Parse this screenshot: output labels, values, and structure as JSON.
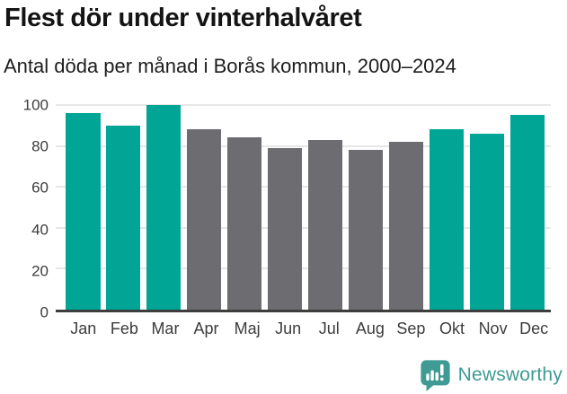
{
  "header": {
    "title": "Flest dör under vinterhalvåret",
    "subtitle": "Antal döda per månad i Borås kommun, 2000–2024"
  },
  "chart_data": {
    "type": "bar",
    "title": "Flest dör under vinterhalvåret",
    "subtitle": "Antal döda per månad i Borås kommun, 2000–2024",
    "categories": [
      "Jan",
      "Feb",
      "Mar",
      "Apr",
      "Maj",
      "Jun",
      "Jul",
      "Aug",
      "Sep",
      "Okt",
      "Nov",
      "Dec"
    ],
    "values": [
      96,
      90,
      100,
      88,
      84,
      79,
      83,
      78,
      82,
      88,
      86,
      95
    ],
    "bar_colors": [
      "teal",
      "teal",
      "teal",
      "gray",
      "gray",
      "gray",
      "gray",
      "gray",
      "gray",
      "teal",
      "teal",
      "teal"
    ],
    "palette": {
      "teal": "#00a596",
      "gray": "#6c6c71"
    },
    "xlabel": "",
    "ylabel": "",
    "ylim": [
      0,
      100
    ],
    "yticks": [
      0,
      20,
      40,
      60,
      80,
      100
    ],
    "grid": "horizontal",
    "legend": "none"
  },
  "footer": {
    "logo_text": "Newsworthy",
    "logo_color": "#3e9a93"
  }
}
